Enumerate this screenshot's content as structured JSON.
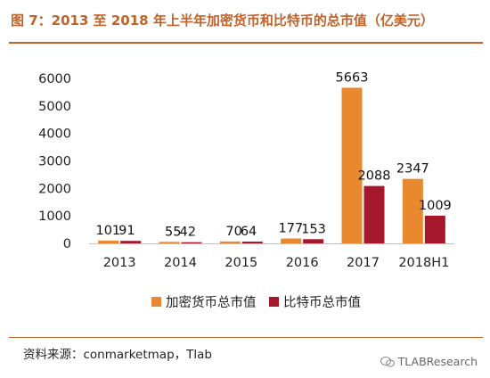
{
  "title": "图 7：2013 至 2018 年上半年加密货币和比特币的总市值（亿美元）",
  "source": "资料来源：conmarketmap，Tlab",
  "brand": {
    "icon": "wechat-icon",
    "text": "TLABResearch"
  },
  "colors": {
    "series1": "#e8892f",
    "series2": "#a5172b",
    "accent": "#c0622a",
    "axis": "#bfbfbf"
  },
  "chart_data": {
    "type": "bar",
    "categories": [
      "2013",
      "2014",
      "2015",
      "2016",
      "2017",
      "2018H1"
    ],
    "series": [
      {
        "name": "加密货币总市值",
        "values": [
          101,
          55,
          70,
          177,
          5663,
          2347
        ]
      },
      {
        "name": "比特币总市值",
        "values": [
          91,
          42,
          64,
          153,
          2088,
          1009
        ]
      }
    ],
    "data_labels": [
      [
        "101",
        "55",
        "70",
        "177",
        "5663",
        "2347"
      ],
      [
        "91",
        "42",
        "64",
        "153",
        "2088",
        "1009"
      ]
    ],
    "yticks": [
      "0",
      "1000",
      "2000",
      "3000",
      "4000",
      "5000",
      "6000"
    ],
    "ylim": [
      0,
      6000
    ],
    "grid": false,
    "legend_position": "bottom"
  }
}
